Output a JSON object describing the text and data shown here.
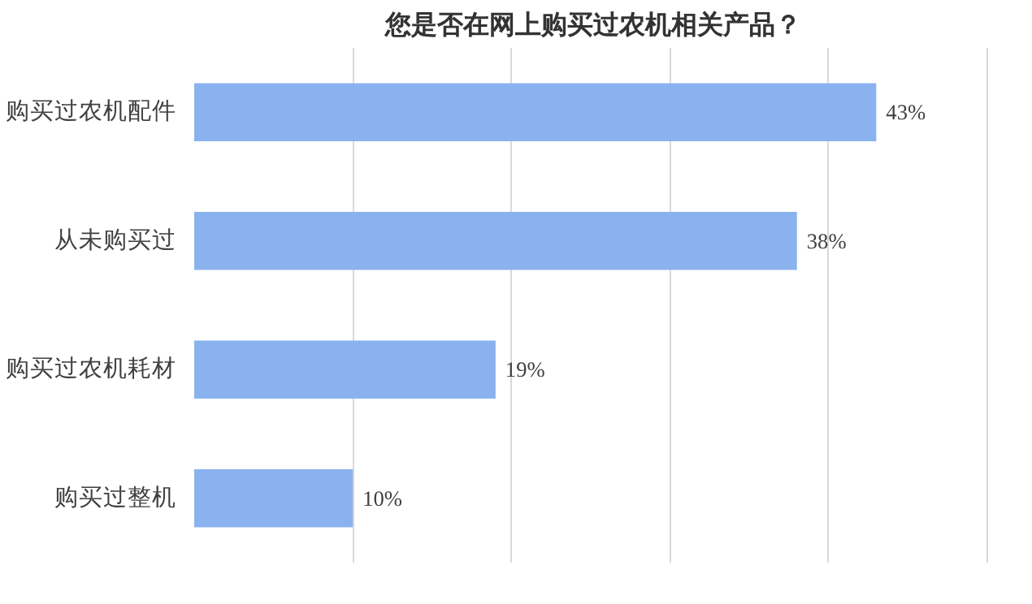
{
  "chart_data": {
    "type": "bar",
    "orientation": "horizontal",
    "title": "您是否在网上购买过农机相关产品？",
    "categories": [
      "购买过农机配件",
      "从未购买过",
      "购买过农机耗材",
      "购买过整机"
    ],
    "values": [
      43,
      38,
      19,
      10
    ],
    "value_labels": [
      "43%",
      "38%",
      "19%",
      "10%"
    ],
    "color": "#8ab2ee",
    "tick_labels": "y",
    "grid": "x"
  }
}
